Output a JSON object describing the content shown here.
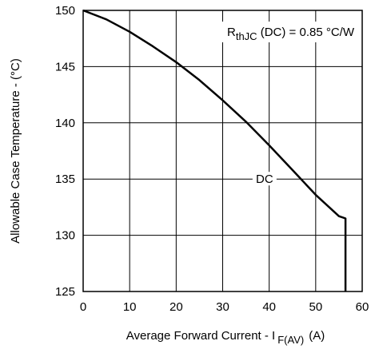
{
  "chart_data": {
    "type": "line",
    "xlabel_main": "Average Forward Current - I",
    "xlabel_sub": "F(AV)",
    "xlabel_unit": "(A)",
    "ylabel": "Allowable Case Temperature - (°C)",
    "xlim": [
      0,
      60
    ],
    "ylim": [
      125,
      150
    ],
    "xticks": [
      "0",
      "10",
      "20",
      "30",
      "40",
      "50",
      "60"
    ],
    "yticks": [
      "125",
      "130",
      "135",
      "140",
      "145",
      "150"
    ],
    "grid": true,
    "annotation": {
      "main": "R",
      "sub": "thJC",
      "rest": " (DC) = 0.85 °C/W"
    },
    "series": [
      {
        "name": "DC",
        "x": [
          0,
          5,
          10,
          15,
          20,
          25,
          30,
          35,
          40,
          45,
          50,
          55,
          56.4,
          56.4
        ],
        "y": [
          150,
          149.2,
          148.1,
          146.8,
          145.4,
          143.8,
          142.0,
          140.1,
          138.0,
          135.8,
          133.6,
          131.7,
          131.5,
          125
        ]
      }
    ]
  }
}
